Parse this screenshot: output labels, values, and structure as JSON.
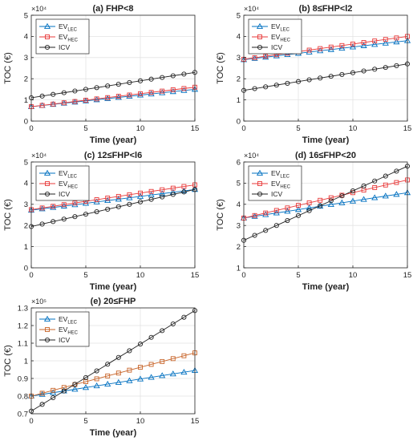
{
  "chart_data": [
    {
      "type": "line",
      "title": "(a) FHP<8",
      "xlabel": "Time (year)",
      "ylabel": "TOC (€)",
      "exponent_label": "×10⁴",
      "xlim": [
        0,
        15
      ],
      "ylim": [
        0,
        5
      ],
      "xticks": [
        0,
        5,
        10,
        15
      ],
      "yticks": [
        0,
        1,
        2,
        3,
        4,
        5
      ],
      "grid": true,
      "legend_position": "top-left",
      "series": [
        {
          "name": "EV",
          "subscript": "LEC",
          "color": "#0070c0",
          "marker": "triangle",
          "start": 0.68,
          "end": 1.5
        },
        {
          "name": "EV",
          "subscript": "HEC",
          "color": "#e83a3a",
          "marker": "square",
          "start": 0.68,
          "end": 1.6
        },
        {
          "name": "ICV",
          "subscript": "",
          "color": "#222222",
          "marker": "circle",
          "start": 1.1,
          "end": 2.3
        }
      ]
    },
    {
      "type": "line",
      "title": "(b) 8≤FHP<l2",
      "xlabel": "Time (year)",
      "ylabel": "TOC (€)",
      "exponent_label": "×10⁴",
      "xlim": [
        0,
        15
      ],
      "ylim": [
        0,
        5
      ],
      "xticks": [
        0,
        5,
        10,
        15
      ],
      "yticks": [
        0,
        1,
        2,
        3,
        4,
        5
      ],
      "grid": true,
      "legend_position": "top-left",
      "series": [
        {
          "name": "EV",
          "subscript": "LEC",
          "color": "#0070c0",
          "marker": "triangle",
          "start": 2.9,
          "end": 3.8
        },
        {
          "name": "EV",
          "subscript": "HEC",
          "color": "#e83a3a",
          "marker": "square",
          "start": 2.92,
          "end": 4.0
        },
        {
          "name": "ICV",
          "subscript": "",
          "color": "#222222",
          "marker": "circle",
          "start": 1.45,
          "end": 2.7
        }
      ]
    },
    {
      "type": "line",
      "title": "(c) 12≤FHP<l6",
      "xlabel": "Time (year)",
      "ylabel": "TOC (€)",
      "exponent_label": "×10⁴",
      "xlim": [
        0,
        15
      ],
      "ylim": [
        0,
        5
      ],
      "xticks": [
        0,
        5,
        10,
        15
      ],
      "yticks": [
        0,
        1,
        2,
        3,
        4,
        5
      ],
      "grid": true,
      "legend_position": "top-left",
      "series": [
        {
          "name": "EV",
          "subscript": "LEC",
          "color": "#0070c0",
          "marker": "triangle",
          "start": 2.72,
          "end": 3.7
        },
        {
          "name": "EV",
          "subscript": "HEC",
          "color": "#e83a3a",
          "marker": "square",
          "start": 2.75,
          "end": 3.92
        },
        {
          "name": "ICV",
          "subscript": "",
          "color": "#222222",
          "marker": "circle",
          "start": 1.95,
          "end": 3.7
        }
      ]
    },
    {
      "type": "line",
      "title": "(d) 16≤FHP<20",
      "xlabel": "Time (year)",
      "ylabel": "TOC (€)",
      "exponent_label": "×10⁴",
      "xlim": [
        0,
        15
      ],
      "ylim": [
        1,
        6
      ],
      "xticks": [
        0,
        5,
        10,
        15
      ],
      "yticks": [
        1,
        2,
        3,
        4,
        5,
        6
      ],
      "grid": true,
      "legend_position": "top-left",
      "series": [
        {
          "name": "EV",
          "subscript": "LEC",
          "color": "#0070c0",
          "marker": "triangle",
          "start": 3.35,
          "end": 4.55
        },
        {
          "name": "EV",
          "subscript": "HEC",
          "color": "#e83a3a",
          "marker": "square",
          "start": 3.35,
          "end": 5.15
        },
        {
          "name": "ICV",
          "subscript": "",
          "color": "#222222",
          "marker": "circle",
          "start": 2.3,
          "end": 5.8
        }
      ]
    },
    {
      "type": "line",
      "title": "(e) 20≤FHP",
      "xlabel": "Time (year)",
      "ylabel": "TOC (€)",
      "exponent_label": "×10⁵",
      "xlim": [
        0,
        15
      ],
      "ylim": [
        0.7,
        1.3
      ],
      "xticks": [
        0,
        5,
        10,
        15
      ],
      "yticks": [
        0.7,
        0.8,
        0.9,
        1,
        1.1,
        1.2,
        1.3
      ],
      "grid": true,
      "legend_position": "top-left",
      "series": [
        {
          "name": "EV",
          "subscript": "LEC",
          "color": "#0070c0",
          "marker": "triangle",
          "start": 0.8,
          "end": 0.945
        },
        {
          "name": "EV",
          "subscript": "HEC",
          "color": "#c8652a",
          "marker": "square",
          "start": 0.8,
          "end": 1.045
        },
        {
          "name": "ICV",
          "subscript": "",
          "color": "#222222",
          "marker": "circle",
          "start": 0.715,
          "end": 1.285
        }
      ]
    }
  ]
}
